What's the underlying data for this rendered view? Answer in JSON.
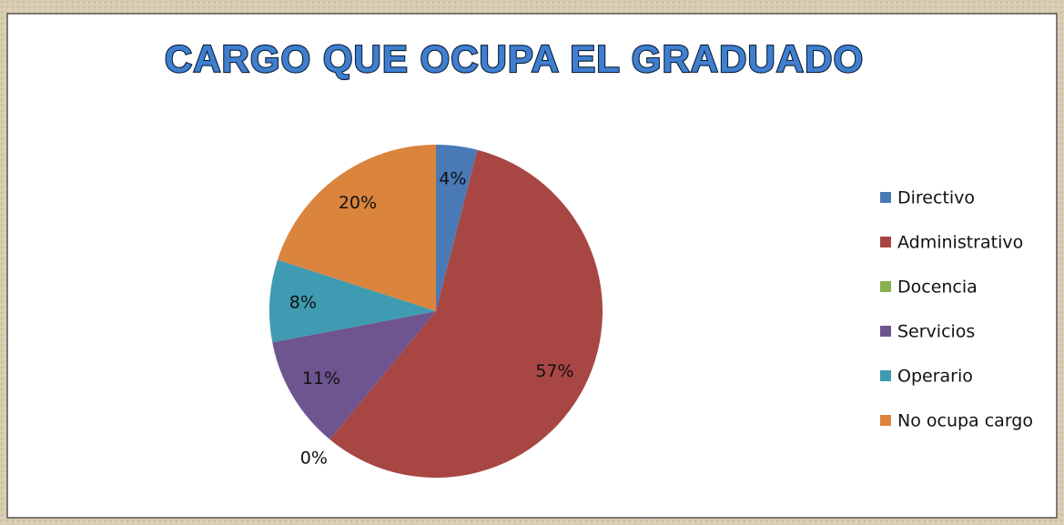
{
  "chart_data": {
    "type": "pie",
    "title": "CARGO QUE OCUPA EL GRADUADO",
    "categories": [
      "Directivo",
      "Administrativo",
      "Docencia",
      "Servicios",
      "Operario",
      "No ocupa cargo"
    ],
    "values": [
      4,
      57,
      0,
      11,
      8,
      20
    ],
    "value_labels": [
      "4%",
      "57%",
      "0%",
      "11%",
      "8%",
      "20%"
    ],
    "colors": [
      "#4a7ab6",
      "#a84644",
      "#8bb04f",
      "#6e5590",
      "#3f9bb1",
      "#db843d"
    ],
    "legend": "right"
  }
}
